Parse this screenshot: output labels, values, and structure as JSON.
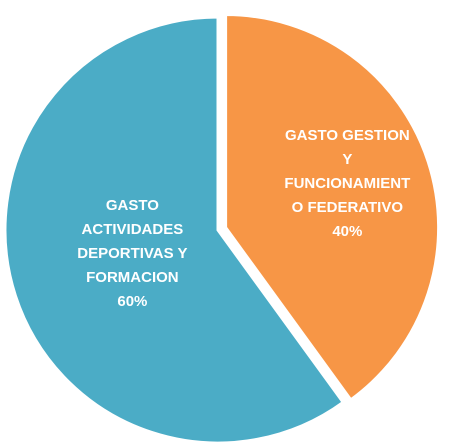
{
  "chart_data": {
    "type": "pie",
    "categories": [
      "GASTO GESTION Y FUNCIONAMIENTO FEDERATIVO",
      "GASTO ACTIVIDADES DEPORTIVAS Y FORMACION"
    ],
    "values": [
      40,
      60
    ],
    "value_labels": [
      "40%",
      "60%"
    ],
    "colors": [
      "#f79646",
      "#4bacc6"
    ]
  }
}
